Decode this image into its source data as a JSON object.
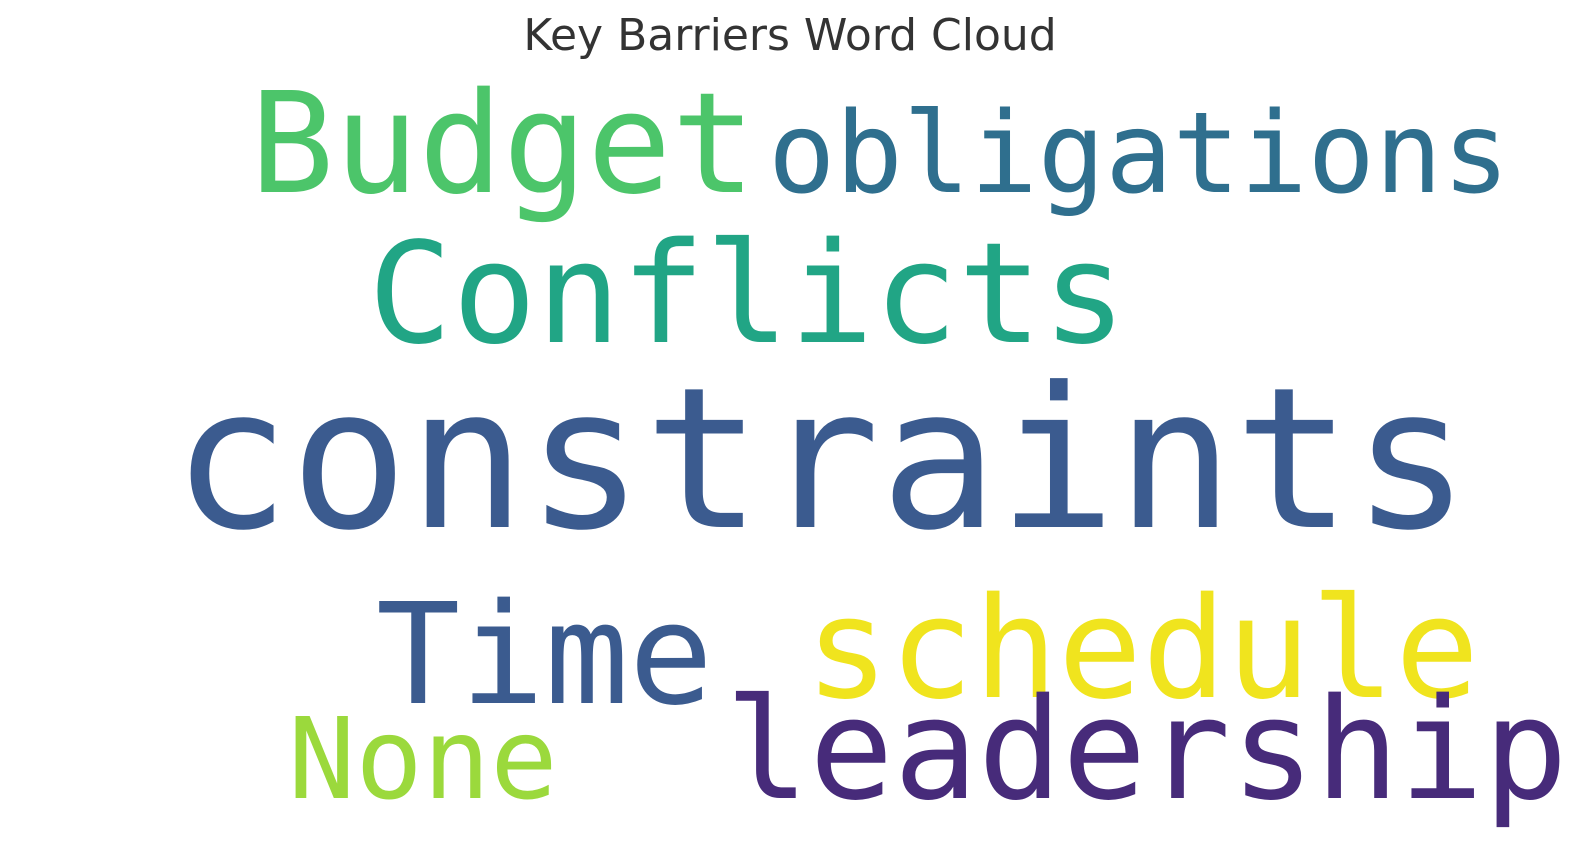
{
  "chart_data": {
    "type": "wordcloud",
    "title": "Key Barriers Word Cloud",
    "colormap": "viridis",
    "words": [
      {
        "text": "constraints",
        "weight": 1.0,
        "color": "#3b5b8f"
      },
      {
        "text": "Conflicts",
        "weight": 0.72,
        "color": "#21a585"
      },
      {
        "text": "schedule",
        "weight": 0.72,
        "color": "#f0e41e"
      },
      {
        "text": "Time",
        "weight": 0.72,
        "color": "#3b5b8f"
      },
      {
        "text": "Budget",
        "weight": 0.72,
        "color": "#4cc56a"
      },
      {
        "text": "leadership",
        "weight": 0.72,
        "color": "#472b7a"
      },
      {
        "text": "obligations",
        "weight": 0.6,
        "color": "#2f6f8e"
      },
      {
        "text": "None",
        "weight": 0.6,
        "color": "#9bd93c"
      }
    ]
  }
}
